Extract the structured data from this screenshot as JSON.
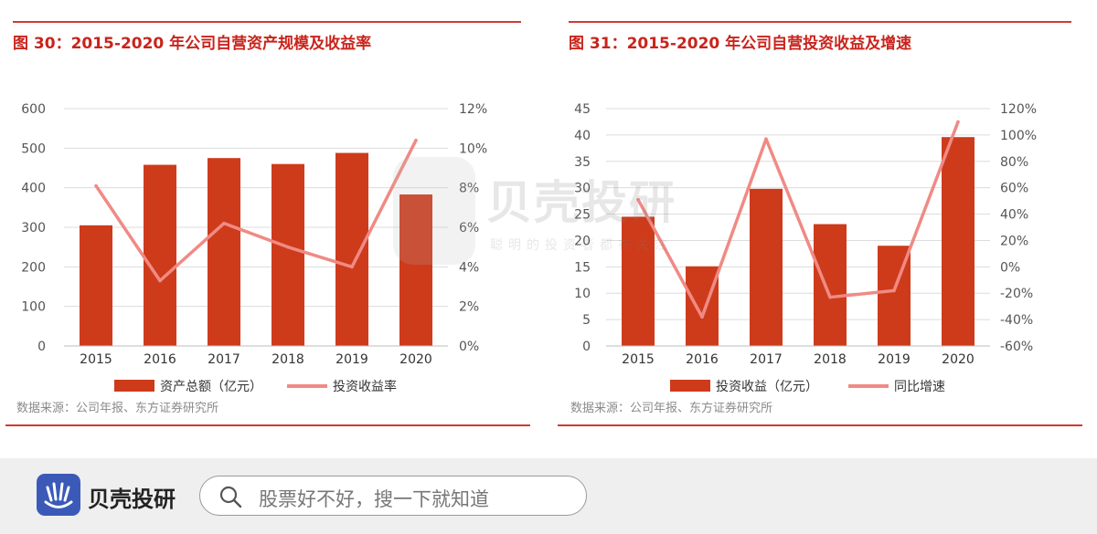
{
  "chart_data": [
    {
      "type": "bar+line",
      "title": "图 30：2015-2020 年公司自营资产规模及收益率",
      "categories": [
        "2015",
        "2016",
        "2017",
        "2018",
        "2019",
        "2020"
      ],
      "series": [
        {
          "name": "资产总额（亿元）",
          "type": "bar",
          "axis": "left",
          "color": "#cd3b1b",
          "values": [
            305,
            458,
            475,
            460,
            488,
            383
          ]
        },
        {
          "name": "投资收益率",
          "type": "line",
          "axis": "right",
          "color": "#f08a84",
          "values": [
            8.1,
            3.3,
            6.2,
            5.0,
            4.0,
            10.4
          ]
        }
      ],
      "y_left": {
        "ticks": [
          "600",
          "500",
          "400",
          "300",
          "200",
          "100",
          "0"
        ],
        "ylim": [
          0,
          600
        ]
      },
      "y_right": {
        "ticks": [
          "12%",
          "10%",
          "8%",
          "6%",
          "4%",
          "2%",
          "0%"
        ],
        "ylim": [
          0,
          12
        ]
      },
      "grid": true,
      "legend": "bottom",
      "source": "数据来源：公司年报、东方证券研究所"
    },
    {
      "type": "bar+line",
      "title": "图 31：2015-2020 年公司自营投资收益及增速",
      "categories": [
        "2015",
        "2016",
        "2017",
        "2018",
        "2019",
        "2020"
      ],
      "series": [
        {
          "name": "投资收益（亿元）",
          "type": "bar",
          "axis": "left",
          "color": "#cd3b1b",
          "values": [
            24.5,
            15.1,
            29.8,
            23.1,
            19.0,
            39.6
          ]
        },
        {
          "name": "同比增速",
          "type": "line",
          "axis": "right",
          "color": "#f08a84",
          "values": [
            51,
            -38,
            97,
            -23,
            -18,
            110
          ]
        }
      ],
      "y_left": {
        "ticks": [
          "45",
          "40",
          "35",
          "30",
          "25",
          "20",
          "15",
          "10",
          "5",
          "0"
        ],
        "ylim": [
          0,
          45
        ]
      },
      "y_right": {
        "ticks": [
          "120%",
          "100%",
          "80%",
          "60%",
          "40%",
          "20%",
          "0%",
          "-20%",
          "-40%",
          "-60%"
        ],
        "ylim": [
          -60,
          120
        ]
      },
      "grid": true,
      "legend": "bottom",
      "source": "数据来源：公司年报、东方证券研究所"
    }
  ],
  "watermark": {
    "name": "贝壳投研",
    "slogan": "聪明的投资者都在关注"
  },
  "footer": {
    "brand": "贝壳投研",
    "search_placeholder": "股票好不好，搜一下就知道"
  }
}
